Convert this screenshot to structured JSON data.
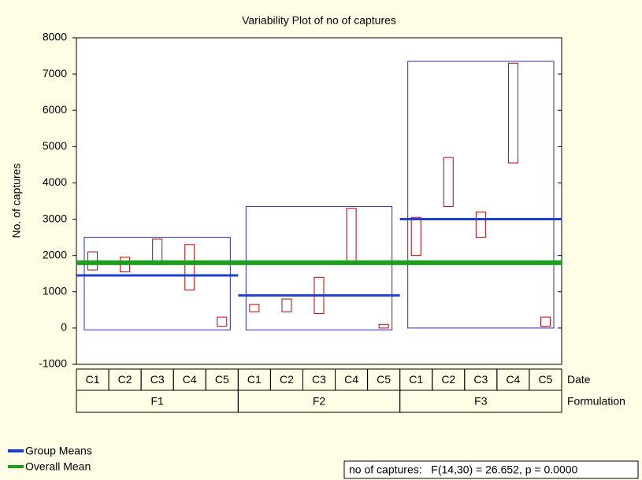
{
  "chart_data": {
    "type": "variability",
    "title": "Variability Plot of no of captures",
    "y_label": "No. of captures",
    "ylim": [
      -1000,
      8000
    ],
    "yticks": [
      -1000,
      0,
      1000,
      2000,
      3000,
      4000,
      5000,
      6000,
      7000,
      8000
    ],
    "inner_factor": "Date",
    "outer_factor": "Formulation",
    "groups": [
      {
        "name": "F1",
        "dates": [
          "C1",
          "C2",
          "C3",
          "C4",
          "C5"
        ],
        "low": [
          1600,
          1550,
          1750,
          1050,
          50
        ],
        "high": [
          2100,
          1950,
          2450,
          2300,
          300
        ],
        "range": [
          -50,
          2500
        ],
        "mean": 1450
      },
      {
        "name": "F2",
        "dates": [
          "C1",
          "C2",
          "C3",
          "C4",
          "C5"
        ],
        "low": [
          450,
          450,
          400,
          1800,
          0
        ],
        "high": [
          650,
          800,
          1400,
          3300,
          100
        ],
        "range": [
          -50,
          3350
        ],
        "mean": 900
      },
      {
        "name": "F3",
        "dates": [
          "C1",
          "C2",
          "C3",
          "C4",
          "C5"
        ],
        "low": [
          2000,
          3350,
          2500,
          4550,
          50
        ],
        "high": [
          3050,
          4700,
          3200,
          7300,
          300
        ],
        "range": [
          0,
          7350
        ],
        "mean": 3000
      }
    ],
    "overall_mean": 1800,
    "legend": [
      {
        "name": "Group Means",
        "color": "#1f3fd0"
      },
      {
        "name": "Overall Mean",
        "color": "#1aa01a"
      }
    ],
    "range_color": "#c00000",
    "group_box_color": "#2a2ab8",
    "annotation": "no of captures:   F(14,30) = 26.652, p = 0.0000"
  }
}
